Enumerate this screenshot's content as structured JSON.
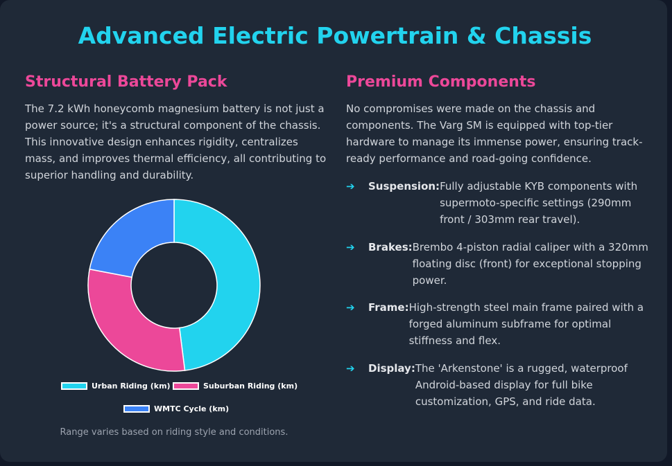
{
  "title": "Advanced Electric Powertrain & Chassis",
  "left": {
    "heading": "Structural Battery Pack",
    "text": "The 7.2 kWh honeycomb magnesium battery is not just a power source; it's a structural component of the chassis. This innovative design enhances rigidity, centralizes mass, and improves thermal efficiency, all contributing to superior handling and durability.",
    "note": "Range varies based on riding style and conditions."
  },
  "right": {
    "heading": "Premium Components",
    "text": "No compromises were made on the chassis and components. The Varg SM is equipped with top-tier hardware to manage its immense power, ensuring track-ready performance and road-going confidence.",
    "arrow_icon": "➔",
    "specs": [
      {
        "label": "Suspension:",
        "desc": "Fully adjustable KYB components with supermoto-specific settings (290mm front / 303mm rear travel)."
      },
      {
        "label": "Brakes:",
        "desc": "Brembo 4-piston radial caliper with a 320mm floating disc (front) for exceptional stopping power."
      },
      {
        "label": "Frame:",
        "desc": "High-strength steel main frame paired with a forged aluminum subframe for optimal stiffness and flex."
      },
      {
        "label": "Display:",
        "desc": "The 'Arkenstone' is a rugged, waterproof Android-based display for full bike customization, GPS, and ride data."
      }
    ]
  },
  "colors": {
    "accent": "#22d3ee",
    "heading": "#ec4899",
    "urban": "#22d3ee",
    "suburban": "#ec4899",
    "wmtc": "#3b82f6"
  },
  "chart_data": {
    "type": "pie",
    "variant": "doughnut",
    "categories": [
      "Urban Riding (km)",
      "Suburban Riding (km)",
      "WMTC Cycle (km)"
    ],
    "values": [
      48,
      30,
      22
    ],
    "legend_position": "bottom"
  }
}
